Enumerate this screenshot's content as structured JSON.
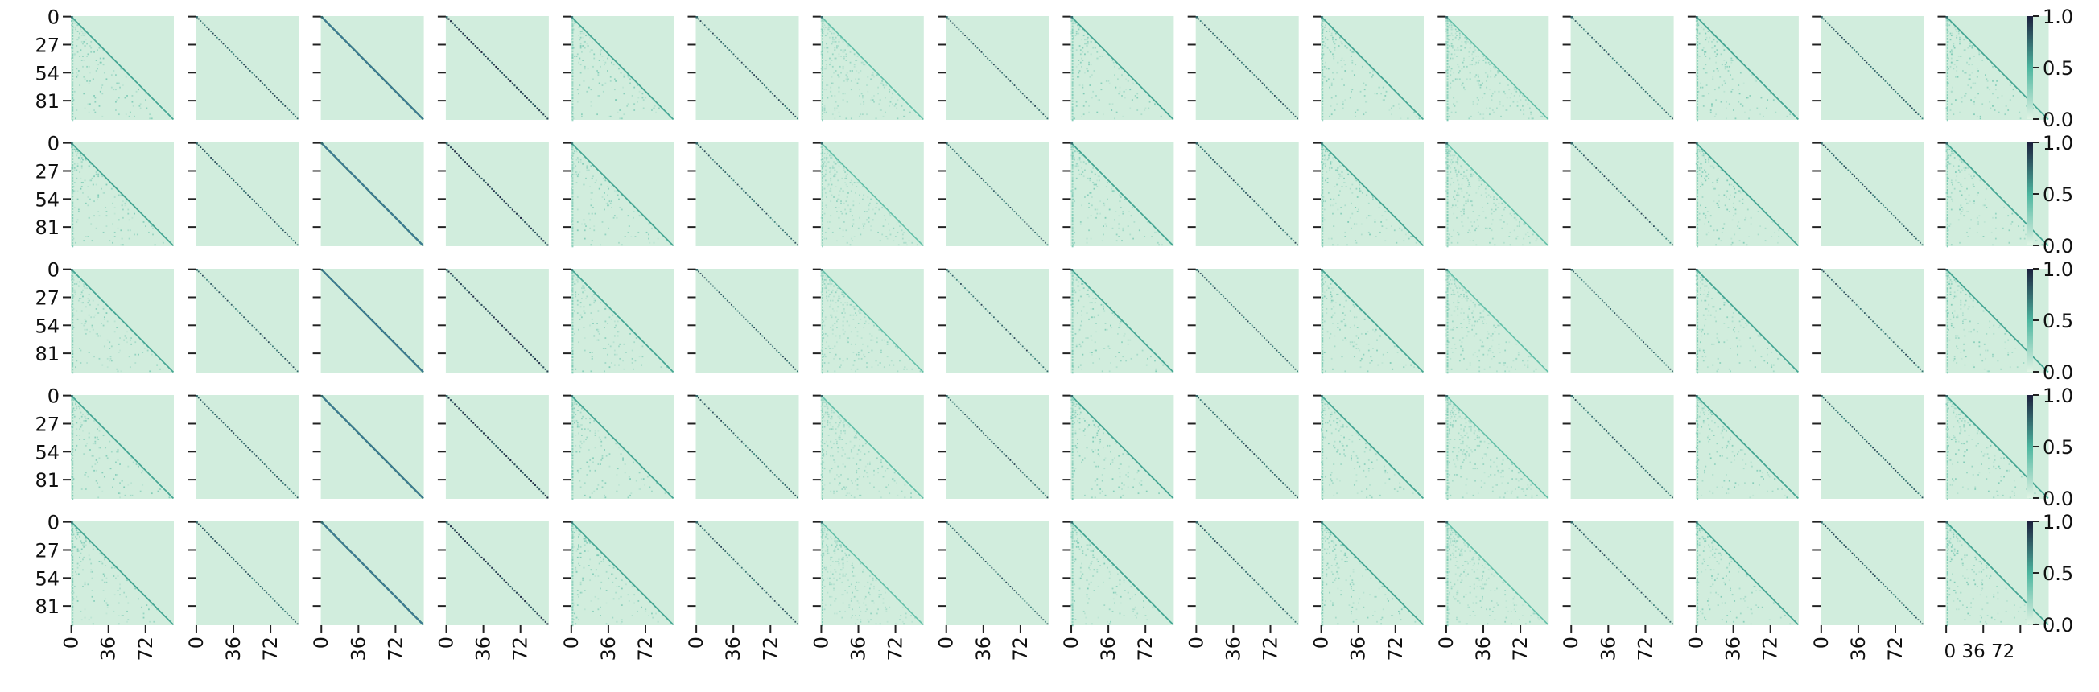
{
  "chart_data": {
    "type": "heatmap",
    "title": "",
    "xlabel": "",
    "ylabel": "",
    "grid": {
      "rows": 5,
      "cols": 16
    },
    "matrix_size": 100,
    "y_ticks": [
      0,
      27,
      54,
      81
    ],
    "x_ticks": [
      0,
      36,
      72
    ],
    "x_tick_labels_col16": "0 36 72",
    "colorbar": {
      "ticks": [
        0.0,
        0.5,
        1.0
      ],
      "tick_labels": [
        "0.0",
        "0.5",
        "1.0"
      ],
      "range": [
        0.0,
        1.0
      ]
    },
    "colors": {
      "low": "#e0f3e4",
      "mid": "#4bb59e",
      "high": "#1c1f3d"
    },
    "panel_styles": [
      "triangular",
      "sharp",
      "blueband",
      "darkdiag",
      "triangular",
      "sharp",
      "faint",
      "sharp",
      "triangular",
      "sharp",
      "triangular",
      "faint",
      "sharp",
      "triangular",
      "sharp",
      "triangular"
    ]
  }
}
